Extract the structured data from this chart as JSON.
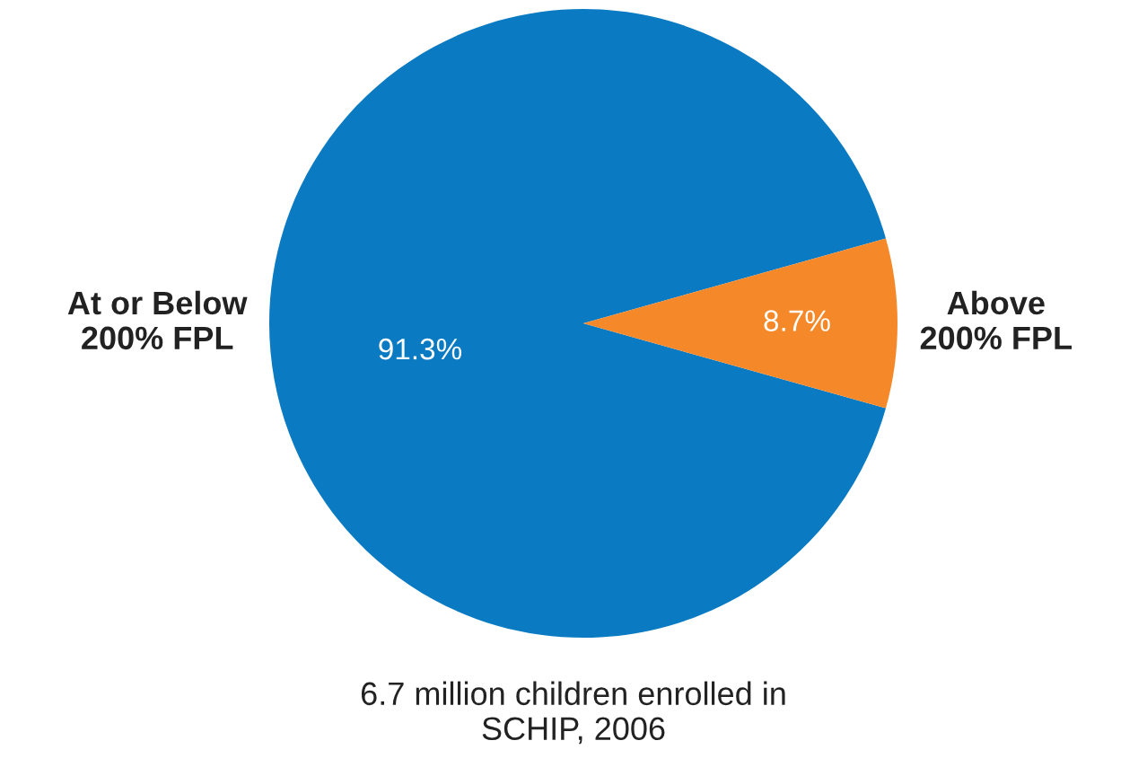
{
  "chart_data": {
    "type": "pie",
    "categories": [
      "At or Below\n200% FPL",
      "Above\n200% FPL"
    ],
    "values": [
      91.3,
      8.7
    ],
    "colors": [
      "#0a7bc2",
      "#f5892a"
    ],
    "value_labels": [
      "91.3%",
      "8.7%"
    ],
    "annotations": [
      "6.7 million children enrolled in\nSCHIP, 2006"
    ],
    "legend": false
  }
}
